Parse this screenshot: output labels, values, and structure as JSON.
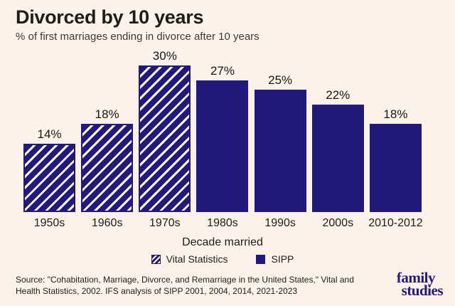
{
  "colors": {
    "background": "#fcf2ea",
    "navy": "#221a78",
    "title_text": "#1d1d1b",
    "subtitle_text": "#3a3a3a"
  },
  "header": {
    "title": "Divorced by 10 years",
    "subtitle": "% of first marriages ending in divorce after 10 years"
  },
  "chart_data": {
    "type": "bar",
    "title": "Divorced by 10 years",
    "subtitle": "% of first marriages ending in divorce after 10 years",
    "categories": [
      "1950s",
      "1960s",
      "1970s",
      "1980s",
      "1990s",
      "2000s",
      "2010-2012"
    ],
    "values": [
      14,
      18,
      30,
      27,
      25,
      22,
      18
    ],
    "value_labels": [
      "14%",
      "18%",
      "30%",
      "27%",
      "25%",
      "22%",
      "18%"
    ],
    "bar_styles": [
      "hatched",
      "hatched",
      "hatched",
      "solid",
      "solid",
      "solid",
      "solid"
    ],
    "series": [
      {
        "name": "Vital Statistics",
        "style": "hatched",
        "categories": [
          "1950s",
          "1960s",
          "1970s"
        ],
        "values": [
          14,
          18,
          30
        ]
      },
      {
        "name": "SIPP",
        "style": "solid",
        "categories": [
          "1980s",
          "1990s",
          "2000s",
          "2010-2012"
        ],
        "values": [
          27,
          25,
          22,
          18
        ]
      }
    ],
    "xlabel": "Decade married",
    "ylabel": "",
    "ylim": [
      0,
      30
    ],
    "grid": false,
    "axis_lines": false,
    "legend_position": "bottom"
  },
  "legend": {
    "items": [
      {
        "label": "Vital Statistics",
        "swatch": "hatched"
      },
      {
        "label": "SIPP",
        "swatch": "solid"
      }
    ]
  },
  "footer": {
    "source_lines": [
      "Source: \"Cohabitation, Marriage, Divorce, and Remarriage in the United States,\" Vital and",
      "Health Statistics, 2002. IFS analysis of SIPP 2001, 2004, 2014, 2021-2023"
    ],
    "logo_line1": "family",
    "logo_line2": "studies"
  }
}
